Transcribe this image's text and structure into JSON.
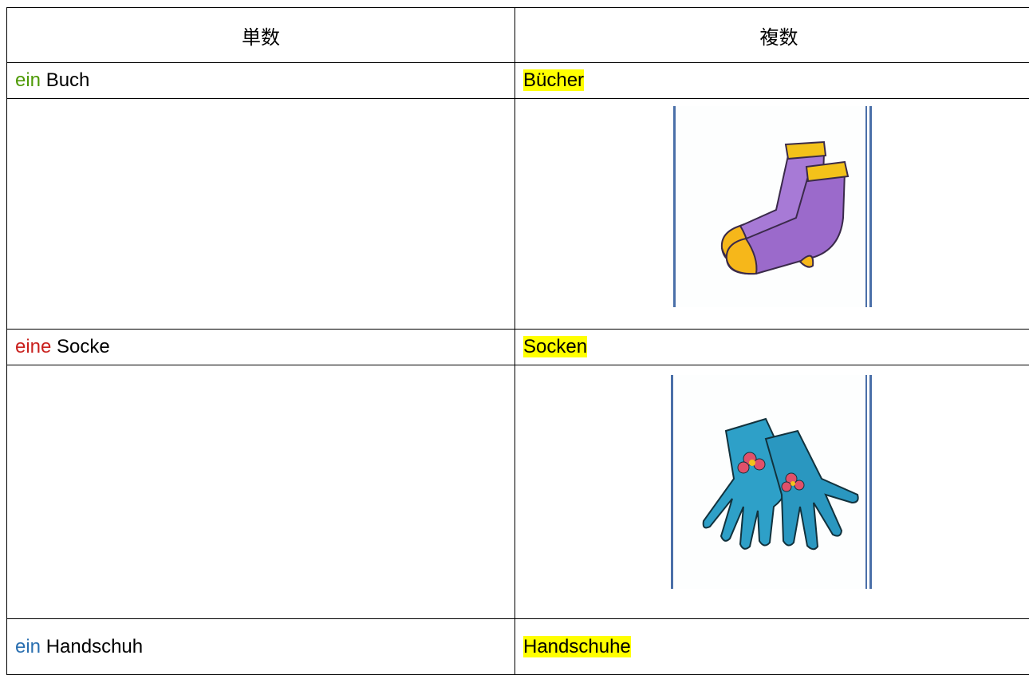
{
  "table": {
    "header": [
      "単数",
      "複数"
    ],
    "rows": [
      {
        "article": "ein",
        "noun": "Buch",
        "plural": "Bücher"
      },
      {
        "article": "eine",
        "noun": "Socke",
        "plural": "Socken"
      },
      {
        "article": "ein",
        "noun": "Handschuh",
        "plural": "Handschuhe"
      }
    ]
  }
}
